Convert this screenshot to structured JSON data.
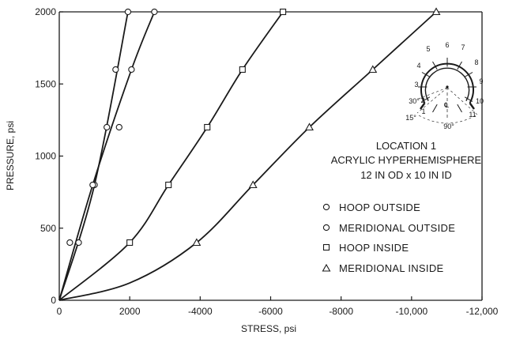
{
  "chart_data": {
    "type": "line",
    "xlabel": "STRESS, psi",
    "ylabel": "PRESSURE, psi",
    "xlim": [
      0,
      12000
    ],
    "ylim": [
      0,
      2000
    ],
    "x_tick_labels": [
      "0",
      "2000",
      "-4000",
      "-6000",
      "-8000",
      "-10,000",
      "-12,000"
    ],
    "x_tick_values": [
      0,
      2000,
      4000,
      6000,
      8000,
      10000,
      12000
    ],
    "y_ticks": [
      0,
      500,
      1000,
      1500,
      2000
    ],
    "grid": false,
    "annotation": [
      "LOCATION 1",
      "ACRYLIC HYPERHEMISPHERE",
      "12 IN OD x 10 IN ID"
    ],
    "legend_placement": "right-center",
    "series": [
      {
        "name": "HOOP OUTSIDE",
        "marker": "circle",
        "curve": [
          [
            0,
            0
          ],
          [
            1000,
            800
          ],
          [
            1950,
            2000
          ]
        ],
        "points": [
          [
            300,
            400
          ],
          [
            1000,
            800
          ],
          [
            1350,
            1200
          ],
          [
            1600,
            1600
          ],
          [
            1950,
            2000
          ]
        ]
      },
      {
        "name": "MERIDIONAL OUTSIDE",
        "marker": "circle",
        "curve": [
          [
            0,
            0
          ],
          [
            950,
            800
          ],
          [
            2050,
            1600
          ],
          [
            2700,
            2000
          ]
        ],
        "points": [
          [
            550,
            400
          ],
          [
            950,
            800
          ],
          [
            1700,
            1200
          ],
          [
            2050,
            1600
          ],
          [
            2700,
            2000
          ]
        ]
      },
      {
        "name": "HOOP INSIDE",
        "marker": "square",
        "curve": [
          [
            0,
            0
          ],
          [
            2000,
            400
          ],
          [
            3100,
            800
          ],
          [
            4200,
            1200
          ],
          [
            5200,
            1600
          ],
          [
            6350,
            2000
          ]
        ],
        "points": [
          [
            2000,
            400
          ],
          [
            3100,
            800
          ],
          [
            4200,
            1200
          ],
          [
            5200,
            1600
          ],
          [
            6350,
            2000
          ]
        ]
      },
      {
        "name": "MERIDIONAL INSIDE",
        "marker": "triangle",
        "curve": [
          [
            0,
            0
          ],
          [
            2000,
            120
          ],
          [
            3900,
            400
          ],
          [
            5500,
            800
          ],
          [
            7100,
            1200
          ],
          [
            8900,
            1600
          ],
          [
            10700,
            2000
          ]
        ],
        "points": [
          [
            3900,
            400
          ],
          [
            5500,
            800
          ],
          [
            7100,
            1200
          ],
          [
            8900,
            1600
          ],
          [
            10700,
            2000
          ]
        ]
      }
    ],
    "inset_diagram": {
      "gauge_numbers": [
        "1",
        "2",
        "3",
        "4",
        "5",
        "6",
        "7",
        "8",
        "9",
        "10",
        "11"
      ],
      "angle_labels": [
        "30°",
        "15°",
        "90°"
      ],
      "centerline_label": "℄"
    }
  }
}
